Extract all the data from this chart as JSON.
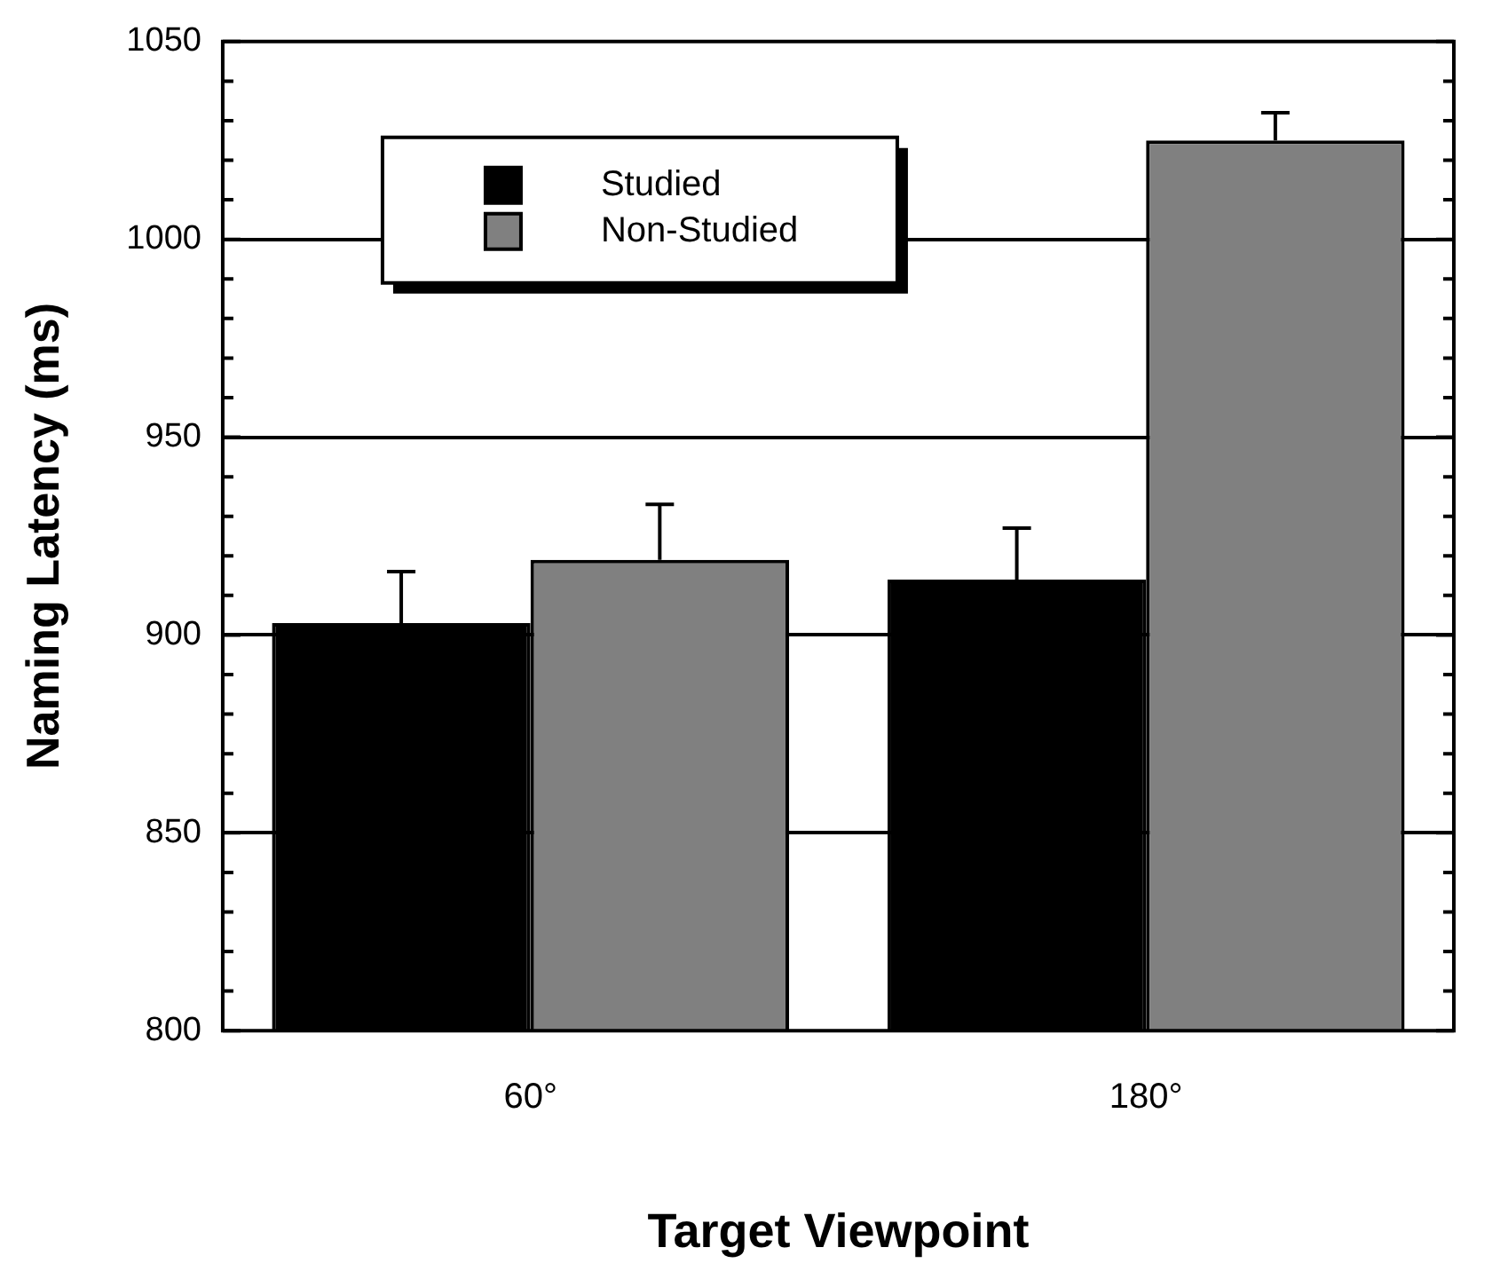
{
  "chart_data": {
    "type": "bar",
    "xlabel": "Target Viewpoint",
    "ylabel": "Naming Latency (ms)",
    "categories": [
      "60°",
      "180°"
    ],
    "series": [
      {
        "name": "Studied",
        "color": "#000000",
        "values": [
          903,
          914
        ],
        "errors": [
          [
            903,
            916
          ],
          [
            914,
            927
          ]
        ]
      },
      {
        "name": "Non-Studied",
        "color": "#808080",
        "values": [
          919,
          1025
        ],
        "errors": [
          [
            919,
            933
          ],
          [
            1025,
            1032
          ]
        ]
      }
    ],
    "ylim": [
      800,
      1050
    ],
    "yticks": [
      800,
      {
        "value": 810,
        "label": null
      },
      {
        "value": 820,
        "label": null
      },
      {
        "value": 830,
        "label": null
      },
      {
        "value": 840,
        "label": null
      },
      850,
      {
        "value": 860,
        "label": null
      },
      {
        "value": 870,
        "label": null
      },
      {
        "value": 880,
        "label": null
      },
      {
        "value": 890,
        "label": null
      },
      900,
      {
        "value": 910,
        "label": null
      },
      {
        "value": 920,
        "label": null
      },
      {
        "value": 930,
        "label": null
      },
      {
        "value": 940,
        "label": null
      },
      950,
      {
        "value": 960,
        "label": null
      },
      {
        "value": 970,
        "label": null
      },
      {
        "value": 980,
        "label": null
      },
      {
        "value": 990,
        "label": null
      },
      1000,
      {
        "value": 1010,
        "label": null
      },
      {
        "value": 1020,
        "label": null
      },
      {
        "value": 1030,
        "label": null
      },
      {
        "value": 1040,
        "label": null
      },
      1050
    ],
    "grid": "y",
    "legend": "top left"
  }
}
